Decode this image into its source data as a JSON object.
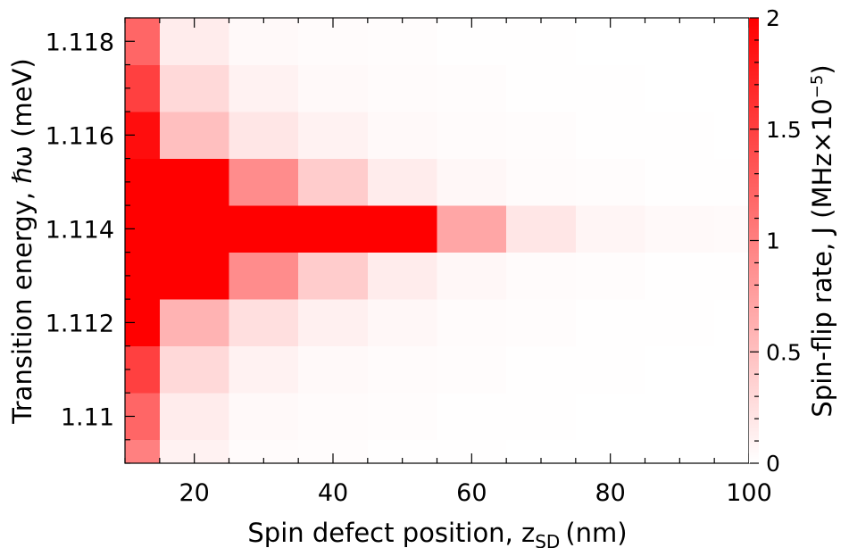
{
  "chart_data": {
    "type": "heatmap",
    "xlabel": "Spin defect position, z",
    "xlabel_subscript": "SD",
    "xlabel_unit": "(nm)",
    "ylabel": "Transition energy, ℏω (meV)",
    "colorbar_label": "Spin-flip rate, J (MHz×10",
    "colorbar_label_exponent": "−5",
    "colorbar_label_close": ")",
    "xlim": [
      10,
      100
    ],
    "ylim": [
      1.109,
      1.1185
    ],
    "clim": [
      0,
      2
    ],
    "x_ticks": [
      20,
      40,
      60,
      80,
      100
    ],
    "x_tick_labels": [
      "20",
      "40",
      "60",
      "80",
      "100"
    ],
    "y_ticks": [
      1.11,
      1.112,
      1.114,
      1.116,
      1.118
    ],
    "y_tick_labels": [
      "1.11",
      "1.112",
      "1.114",
      "1.116",
      "1.118"
    ],
    "colorbar_ticks": [
      0,
      0.5,
      1,
      1.5,
      2
    ],
    "colorbar_tick_labels": [
      "0",
      "0.5",
      "1",
      "1.5",
      "2"
    ],
    "colormap": [
      "#ffffff",
      "#ff0000"
    ],
    "peak_energy": 1.1138,
    "grid": false,
    "x": [
      10,
      20,
      30,
      40,
      50,
      60,
      70,
      80,
      90,
      100
    ],
    "y": [
      1.109,
      1.11,
      1.111,
      1.112,
      1.113,
      1.114,
      1.115,
      1.116,
      1.117,
      1.118
    ],
    "z": [
      [
        1.0,
        0.1,
        0.03,
        0.02,
        0.01,
        0.01,
        0.0,
        0.0,
        0.0,
        0.0
      ],
      [
        1.2,
        0.15,
        0.05,
        0.03,
        0.02,
        0.01,
        0.01,
        0.0,
        0.0,
        0.0
      ],
      [
        1.5,
        0.3,
        0.1,
        0.05,
        0.03,
        0.02,
        0.01,
        0.01,
        0.0,
        0.0
      ],
      [
        2.0,
        0.6,
        0.25,
        0.12,
        0.06,
        0.03,
        0.02,
        0.01,
        0.01,
        0.0
      ],
      [
        2.0,
        2.0,
        0.9,
        0.4,
        0.15,
        0.06,
        0.03,
        0.02,
        0.01,
        0.01
      ],
      [
        2.0,
        2.0,
        2.0,
        2.0,
        2.0,
        0.7,
        0.2,
        0.08,
        0.05,
        0.04
      ],
      [
        2.0,
        2.0,
        0.9,
        0.4,
        0.15,
        0.06,
        0.03,
        0.02,
        0.01,
        0.01
      ],
      [
        1.9,
        0.5,
        0.2,
        0.1,
        0.05,
        0.03,
        0.02,
        0.01,
        0.01,
        0.0
      ],
      [
        1.5,
        0.3,
        0.1,
        0.05,
        0.03,
        0.02,
        0.01,
        0.01,
        0.0,
        0.0
      ],
      [
        1.2,
        0.15,
        0.05,
        0.03,
        0.02,
        0.01,
        0.01,
        0.0,
        0.0,
        0.0
      ]
    ]
  }
}
